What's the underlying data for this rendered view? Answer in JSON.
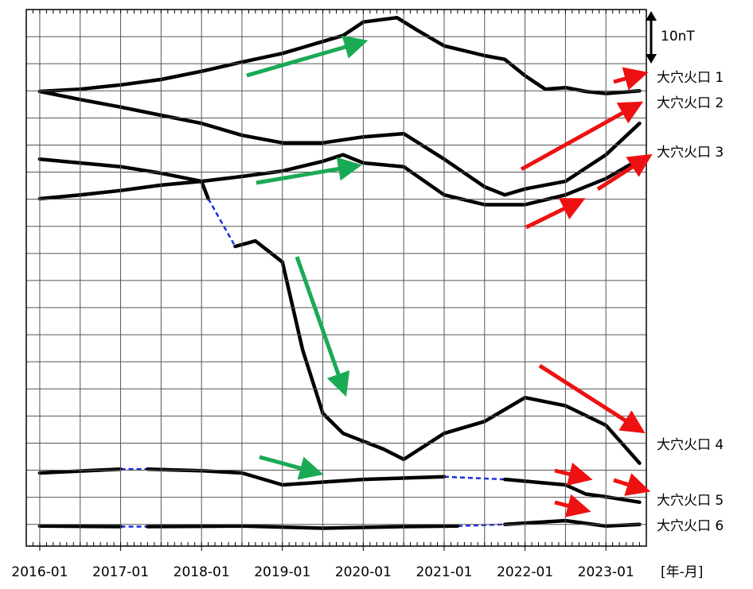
{
  "chart_data": {
    "type": "line",
    "x_label": "[年-月]",
    "scale_annotation": "10nT",
    "xlim": [
      "2015-11",
      "2023-07"
    ],
    "xticks": [
      "2016-01",
      "2017-01",
      "2018-01",
      "2019-01",
      "2020-01",
      "2021-01",
      "2022-01",
      "2023-01"
    ],
    "xgrid_step_months": 6,
    "ylim": [
      -4,
      95
    ],
    "yticks": [
      0,
      5,
      10,
      15,
      20,
      25,
      30,
      35,
      40,
      45,
      50,
      55,
      60,
      65,
      70,
      75,
      80,
      85,
      90
    ],
    "grid": true,
    "series": [
      {
        "name": "大穴火口 1",
        "color": "#000000",
        "x": [
          "2016-01",
          "2016-07",
          "2017-01",
          "2017-07",
          "2018-01",
          "2018-07",
          "2019-01",
          "2019-07",
          "2019-10",
          "2020-01",
          "2020-06",
          "2020-09",
          "2021-01",
          "2021-07",
          "2021-10",
          "2022-01",
          "2022-04",
          "2022-07",
          "2022-10",
          "2023-01",
          "2023-06"
        ],
        "values": [
          79.9,
          80.3,
          81.1,
          82.1,
          83.6,
          85.3,
          86.9,
          89.1,
          90.2,
          92.7,
          93.5,
          91.2,
          88.3,
          86.5,
          85.8,
          82.8,
          80.3,
          80.6,
          79.9,
          79.5,
          80.0
        ]
      },
      {
        "name": "大穴火口 2",
        "color": "#000000",
        "x": [
          "2016-01",
          "2016-07",
          "2017-01",
          "2017-07",
          "2018-01",
          "2018-07",
          "2019-01",
          "2019-07",
          "2020-01",
          "2020-07",
          "2021-01",
          "2021-07",
          "2021-10",
          "2022-01",
          "2022-07",
          "2023-01",
          "2023-06"
        ],
        "values": [
          79.9,
          78.4,
          77.0,
          75.5,
          74.0,
          71.8,
          70.4,
          70.4,
          71.5,
          72.1,
          67.4,
          62.3,
          60.8,
          61.9,
          63.3,
          68.2,
          74.0
        ]
      },
      {
        "name": "大穴火口 3",
        "color": "#000000",
        "x": [
          "2016-01",
          "2016-07",
          "2017-01",
          "2017-07",
          "2018-01",
          "2018-07",
          "2019-01",
          "2019-07",
          "2019-10",
          "2020-01",
          "2020-07",
          "2021-01",
          "2021-07",
          "2022-01",
          "2022-07",
          "2023-01",
          "2023-06"
        ],
        "values": [
          60.1,
          60.8,
          61.6,
          62.6,
          63.3,
          64.2,
          65.2,
          67.0,
          68.2,
          66.7,
          66.0,
          60.8,
          59.0,
          59.0,
          60.8,
          63.8,
          67.4
        ]
      },
      {
        "name": "大穴火口 4",
        "color": "#000000",
        "x": [
          "2016-01",
          "2016-07",
          "2017-01",
          "2017-07",
          "2018-01",
          "2018-02",
          "2018-04",
          "2018-06",
          "2018-09",
          "2019-01",
          "2019-04",
          "2019-07",
          "2019-10",
          "2020-04",
          "2020-07",
          "2021-01",
          "2021-07",
          "2022-01",
          "2022-07",
          "2023-01",
          "2023-06"
        ],
        "values": [
          67.4,
          66.7,
          66.0,
          64.8,
          63.3,
          60.1,
          null,
          51.3,
          52.3,
          48.4,
          32.2,
          20.5,
          16.8,
          13.9,
          12.0,
          16.8,
          19.0,
          23.4,
          21.9,
          18.3,
          11.3
        ]
      },
      {
        "name": "大穴火口 5",
        "color": "#000000",
        "x": [
          "2016-01",
          "2017-01",
          "2017-03",
          "2017-05",
          "2018-01",
          "2018-07",
          "2019-01",
          "2019-07",
          "2020-01",
          "2021-01",
          "2021-06",
          "2021-10",
          "2022-07",
          "2022-10",
          "2023-01",
          "2023-06"
        ],
        "values": [
          9.5,
          10.2,
          null,
          10.2,
          9.9,
          9.5,
          7.3,
          7.8,
          8.3,
          8.8,
          null,
          8.3,
          7.3,
          5.6,
          5.1,
          4.1
        ]
      },
      {
        "name": "大穴火口 6",
        "color": "#000000",
        "x": [
          "2016-01",
          "2017-01",
          "2017-03",
          "2017-05",
          "2018-07",
          "2019-07",
          "2020-07",
          "2021-03",
          "2021-06",
          "2021-10",
          "2022-07",
          "2023-01",
          "2023-06"
        ],
        "values": [
          -0.3,
          -0.4,
          null,
          -0.4,
          -0.3,
          -0.7,
          -0.4,
          -0.3,
          null,
          0.0,
          0.7,
          -0.3,
          0.0
        ]
      }
    ]
  }
}
